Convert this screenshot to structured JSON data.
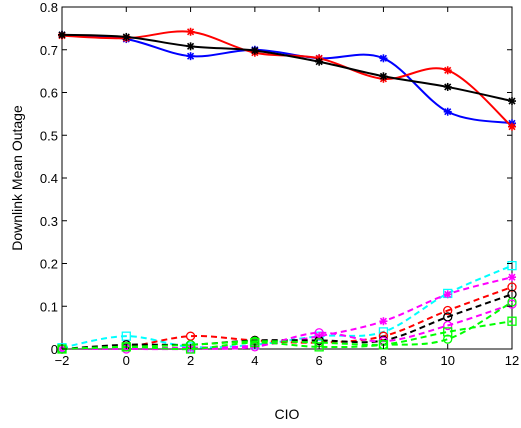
{
  "chart_data": {
    "type": "line",
    "title": "",
    "xlabel": "CIO",
    "ylabel": "Downlink Mean Outage",
    "xlim": [
      -2,
      12
    ],
    "ylim": [
      0,
      0.8
    ],
    "xticks": [
      -2,
      0,
      2,
      4,
      6,
      8,
      10,
      12
    ],
    "yticks": [
      0,
      0.1,
      0.2,
      0.3,
      0.4,
      0.5,
      0.6,
      0.7,
      0.8
    ],
    "xtick_labels": [
      "−2",
      "0",
      "2",
      "4",
      "6",
      "8",
      "10",
      "12"
    ],
    "ytick_labels": [
      "0",
      "0.1",
      "0.2",
      "0.3",
      "0.4",
      "0.5",
      "0.6",
      "0.7",
      "0.8"
    ],
    "grid": false,
    "x": [
      -2,
      0,
      2,
      4,
      6,
      8,
      10,
      12
    ],
    "series": [
      {
        "color": "#0000ff",
        "style": "solid",
        "marker": "asterisk",
        "values": [
          0.735,
          0.725,
          0.685,
          0.7,
          0.68,
          0.68,
          0.555,
          0.528
        ]
      },
      {
        "color": "#ff0000",
        "style": "solid",
        "marker": "asterisk",
        "values": [
          0.733,
          0.727,
          0.742,
          0.693,
          0.68,
          0.632,
          0.652,
          0.52
        ]
      },
      {
        "color": "#000000",
        "style": "solid",
        "marker": "asterisk",
        "values": [
          0.735,
          0.73,
          0.708,
          0.698,
          0.672,
          0.638,
          0.613,
          0.58
        ]
      },
      {
        "color": "#00ffff",
        "style": "dashed",
        "marker": "square",
        "values": [
          0.003,
          0.03,
          0.005,
          0.01,
          0.03,
          0.04,
          0.13,
          0.195
        ]
      },
      {
        "color": "#ff00ff",
        "style": "dashed",
        "marker": "asterisk",
        "values": [
          0.0,
          0.003,
          0.003,
          0.008,
          0.03,
          0.065,
          0.128,
          0.168
        ]
      },
      {
        "color": "#ff0000",
        "style": "dashed",
        "marker": "circle",
        "values": [
          0.0,
          0.005,
          0.03,
          0.02,
          0.015,
          0.03,
          0.09,
          0.145
        ]
      },
      {
        "color": "#000000",
        "style": "dashed",
        "marker": "circle",
        "values": [
          0.0,
          0.01,
          0.01,
          0.02,
          0.02,
          0.02,
          0.075,
          0.128
        ]
      },
      {
        "color": "#ff00ff",
        "style": "dashed",
        "marker": "circle",
        "values": [
          0.0,
          0.0,
          0.0,
          0.005,
          0.038,
          0.018,
          0.055,
          0.105
        ]
      },
      {
        "color": "#00ff00",
        "style": "dashed",
        "marker": "circle",
        "values": [
          0.0,
          0.005,
          0.01,
          0.018,
          0.015,
          0.01,
          0.023,
          0.11
        ]
      },
      {
        "color": "#00ff00",
        "style": "dashed",
        "marker": "square",
        "values": [
          0.0,
          0.005,
          0.0,
          0.015,
          0.005,
          0.01,
          0.04,
          0.065
        ]
      }
    ]
  }
}
